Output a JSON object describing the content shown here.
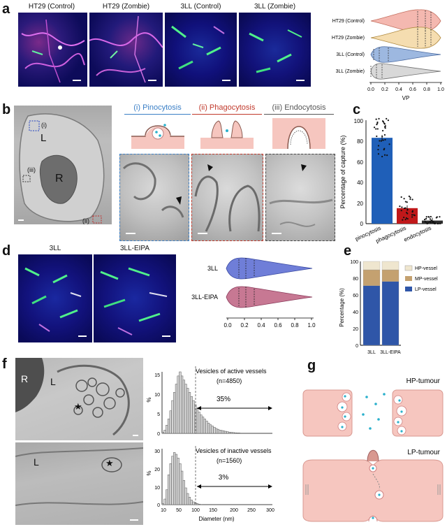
{
  "panels": {
    "a": {
      "label": "a",
      "images": [
        "HT29 (Control)",
        "HT29 (Zombie)",
        "3LL (Control)",
        "3LL (Zombie)"
      ],
      "violin": {
        "categories": [
          "HT29 (Control)",
          "HT29 (Zombie)",
          "3LL (Control)",
          "3LL (Zombie)"
        ],
        "colors": [
          "#f4b8b0",
          "#f5ddb0",
          "#9db8e0",
          "#d8d8d8"
        ],
        "ticks": [
          "0.0",
          "0.2",
          "0.4",
          "0.6",
          "0.8",
          "1.0"
        ],
        "xlabel": "VP"
      }
    },
    "b": {
      "label": "b",
      "overview_labels": {
        "l": "L",
        "r": "R",
        "i": "(i)",
        "ii": "(ii)",
        "iii": "(iii)"
      },
      "titles": [
        "(i) Pinocytosis",
        "(ii) Phagocytosis",
        "(iii) Endocytosis"
      ],
      "title_colors": [
        "#3a7fc6",
        "#c0392b",
        "#555555"
      ]
    },
    "c": {
      "label": "c",
      "ylabel": "Percentage of capture (%)",
      "yticks": [
        "0",
        "20",
        "40",
        "60",
        "80",
        "100"
      ],
      "categories": [
        "pinocytosis",
        "phagocytosis",
        "endocytosis"
      ],
      "colors": [
        "#1f5fb8",
        "#c0181a",
        "#2d2d2d"
      ]
    },
    "d": {
      "label": "d",
      "images": [
        "3LL",
        "3LL-EIPA"
      ],
      "violin": {
        "categories": [
          "3LL",
          "3LL-EIPA"
        ],
        "colors": [
          "#6f7ed8",
          "#c77893"
        ],
        "ticks": [
          "0.0",
          "0.2",
          "0.4",
          "0.6",
          "0.8",
          "1.0"
        ]
      }
    },
    "e": {
      "label": "e",
      "ylabel": "Percentage (%)",
      "yticks": [
        "0",
        "20",
        "40",
        "60",
        "80",
        "100"
      ],
      "categories": [
        "3LL",
        "3LL-EIPA"
      ],
      "legend": [
        "HP-vessel",
        "MP-vessel",
        "LP-vessel"
      ],
      "colors": [
        "#efe6cf",
        "#c4a170",
        "#2f56a8"
      ]
    },
    "f": {
      "label": "f",
      "em_labels": {
        "r": "R",
        "l_top": "L",
        "l_bottom": "L",
        "star": "★"
      },
      "hist_top": {
        "title": "Vesicles of active vessels",
        "n": "(n=4850)",
        "pct": "35%"
      },
      "hist_bottom": {
        "title": "Vesicles of inactive vessels",
        "n": "(n=1560)",
        "pct": "3%"
      },
      "ylabel": "%",
      "yticks_top": [
        "0",
        "5",
        "10",
        "15"
      ],
      "yticks_bottom": [
        "0",
        "10",
        "20",
        "30"
      ],
      "xticks": [
        "10",
        "50",
        "100",
        "150",
        "200",
        "250",
        "300"
      ],
      "xlabel": "Diameter (nm)"
    },
    "g": {
      "label": "g",
      "top_title": "HP-tumour",
      "bottom_title": "LP-tumour"
    }
  },
  "chart_data": [
    {
      "type": "violin",
      "panel": "a",
      "categories": [
        "HT29 (Control)",
        "HT29 (Zombie)",
        "3LL (Control)",
        "3LL (Zombie)"
      ],
      "xlabel": "VP",
      "xlim": [
        0,
        1
      ],
      "medians": [
        0.72,
        0.72,
        0.15,
        0.05
      ],
      "quartiles": [
        [
          0.55,
          0.85
        ],
        [
          0.55,
          0.85
        ],
        [
          0.05,
          0.3
        ],
        [
          0.0,
          0.15
        ]
      ]
    },
    {
      "type": "bar",
      "panel": "c",
      "categories": [
        "pinocytosis",
        "phagocytosis",
        "endocytosis"
      ],
      "values": [
        83,
        15,
        3
      ],
      "ylabel": "Percentage of capture (%)",
      "ylim": [
        0,
        100
      ]
    },
    {
      "type": "violin",
      "panel": "d",
      "categories": [
        "3LL",
        "3LL-EIPA"
      ],
      "xlim": [
        0,
        1
      ],
      "medians": [
        0.15,
        0.15
      ],
      "quartiles": [
        [
          0.05,
          0.25
        ],
        [
          0.05,
          0.25
        ]
      ]
    },
    {
      "type": "bar",
      "panel": "e",
      "categories": [
        "3LL",
        "3LL-EIPA"
      ],
      "series": [
        {
          "name": "LP-vessel",
          "values": [
            71,
            76
          ]
        },
        {
          "name": "MP-vessel",
          "values": [
            19,
            14
          ]
        },
        {
          "name": "HP-vessel",
          "values": [
            10,
            10
          ]
        }
      ],
      "ylabel": "Percentage (%)",
      "ylim": [
        0,
        100
      ]
    },
    {
      "type": "bar",
      "panel": "f-top",
      "title": "Vesicles of active vessels",
      "x": [
        10,
        15,
        20,
        25,
        30,
        35,
        40,
        45,
        50,
        55,
        60,
        65,
        70,
        75,
        80,
        85,
        90,
        95,
        100,
        105,
        110,
        115,
        120,
        125,
        130,
        135,
        140,
        145,
        150,
        155,
        160,
        165,
        170,
        175,
        180,
        185,
        190,
        195,
        200,
        205,
        210
      ],
      "values": [
        0.3,
        0.8,
        2,
        3.5,
        5.5,
        8,
        10,
        12,
        14,
        15,
        14,
        13,
        12,
        11,
        10,
        9,
        8,
        7,
        6,
        5.2,
        4.5,
        4,
        3.5,
        3,
        2.5,
        2.1,
        1.8,
        1.5,
        1.2,
        1,
        0.8,
        0.7,
        0.6,
        0.5,
        0.4,
        0.3,
        0.25,
        0.2,
        0.15,
        0.1,
        0.1
      ],
      "ylabel": "%",
      "xlim": [
        10,
        300
      ],
      "ylim": [
        0,
        15
      ],
      "threshold": 100
    },
    {
      "type": "bar",
      "panel": "f-bottom",
      "title": "Vesicles of inactive vessels",
      "x": [
        10,
        15,
        20,
        25,
        30,
        35,
        40,
        45,
        50,
        55,
        60,
        65,
        70,
        75,
        80,
        85,
        90,
        95,
        100,
        105,
        110
      ],
      "values": [
        0.5,
        3,
        8,
        16,
        22,
        26,
        28,
        27,
        25,
        22,
        18,
        13,
        9,
        6,
        4,
        2.5,
        1.5,
        1,
        0.6,
        0.3,
        0.1
      ],
      "ylabel": "%",
      "xlabel": "Diameter (nm)",
      "xlim": [
        10,
        300
      ],
      "ylim": [
        0,
        30
      ],
      "threshold": 100
    }
  ]
}
